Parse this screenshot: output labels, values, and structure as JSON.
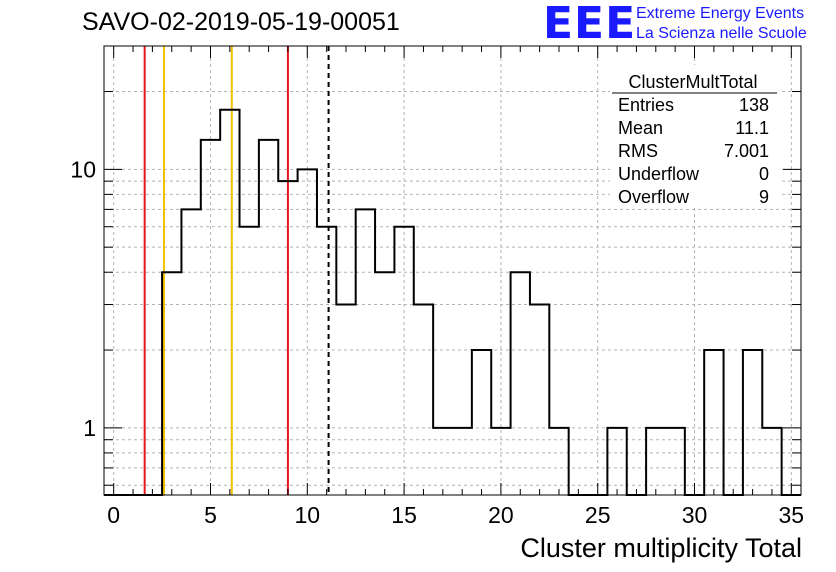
{
  "header": {
    "run_title": "SAVO-02-2019-05-19-00051",
    "logo": {
      "mark": "EEE",
      "line1": "Extreme Energy Events",
      "line2": "La Scienza nelle Scuole",
      "color": "#1a1aff"
    }
  },
  "stats_box": {
    "title": "ClusterMultTotal",
    "rows": [
      {
        "label": "Entries",
        "value": "138"
      },
      {
        "label": "Mean",
        "value": "11.1"
      },
      {
        "label": "RMS",
        "value": "7.001"
      },
      {
        "label": "Underflow",
        "value": "0"
      },
      {
        "label": "Overflow",
        "value": "9"
      }
    ]
  },
  "chart_data": {
    "type": "histogram",
    "title": "SAVO-02-2019-05-19-00051",
    "xlabel": "Cluster multiplicity Total",
    "ylabel": "",
    "xlim": [
      -0.5,
      35.5
    ],
    "ylim": [
      0.55,
      30
    ],
    "yscale": "log",
    "grid": true,
    "bin_width": 1,
    "bins": [
      {
        "x": 0,
        "y": 0
      },
      {
        "x": 1,
        "y": 0
      },
      {
        "x": 2,
        "y": 0
      },
      {
        "x": 3,
        "y": 4
      },
      {
        "x": 4,
        "y": 7
      },
      {
        "x": 5,
        "y": 13
      },
      {
        "x": 6,
        "y": 17
      },
      {
        "x": 7,
        "y": 6
      },
      {
        "x": 8,
        "y": 13
      },
      {
        "x": 9,
        "y": 9
      },
      {
        "x": 10,
        "y": 10
      },
      {
        "x": 11,
        "y": 6
      },
      {
        "x": 12,
        "y": 3
      },
      {
        "x": 13,
        "y": 7
      },
      {
        "x": 14,
        "y": 4
      },
      {
        "x": 15,
        "y": 6
      },
      {
        "x": 16,
        "y": 3
      },
      {
        "x": 17,
        "y": 1
      },
      {
        "x": 18,
        "y": 1
      },
      {
        "x": 19,
        "y": 2
      },
      {
        "x": 20,
        "y": 1
      },
      {
        "x": 21,
        "y": 4
      },
      {
        "x": 22,
        "y": 3
      },
      {
        "x": 23,
        "y": 1
      },
      {
        "x": 24,
        "y": 0
      },
      {
        "x": 25,
        "y": 0
      },
      {
        "x": 26,
        "y": 1
      },
      {
        "x": 27,
        "y": 0
      },
      {
        "x": 28,
        "y": 1
      },
      {
        "x": 29,
        "y": 1
      },
      {
        "x": 30,
        "y": 0
      },
      {
        "x": 31,
        "y": 2
      },
      {
        "x": 32,
        "y": 0
      },
      {
        "x": 33,
        "y": 2
      },
      {
        "x": 34,
        "y": 1
      },
      {
        "x": 35,
        "y": 0
      }
    ],
    "x_ticks": [
      0,
      5,
      10,
      15,
      20,
      25,
      30,
      35
    ],
    "x_tick_labels": [
      "0",
      "5",
      "10",
      "15",
      "20",
      "25",
      "30",
      "35"
    ],
    "y_ticks": [
      1,
      10
    ],
    "y_tick_labels": [
      "1",
      "10"
    ],
    "reference_lines": [
      {
        "x": 1.6,
        "color": "#e8141e",
        "style": "solid"
      },
      {
        "x": 2.6,
        "color": "#f2c200",
        "style": "solid"
      },
      {
        "x": 6.1,
        "color": "#f2c200",
        "style": "solid"
      },
      {
        "x": 9.0,
        "color": "#e8141e",
        "style": "solid"
      },
      {
        "x": 11.1,
        "color": "#000000",
        "style": "dashed"
      }
    ]
  }
}
